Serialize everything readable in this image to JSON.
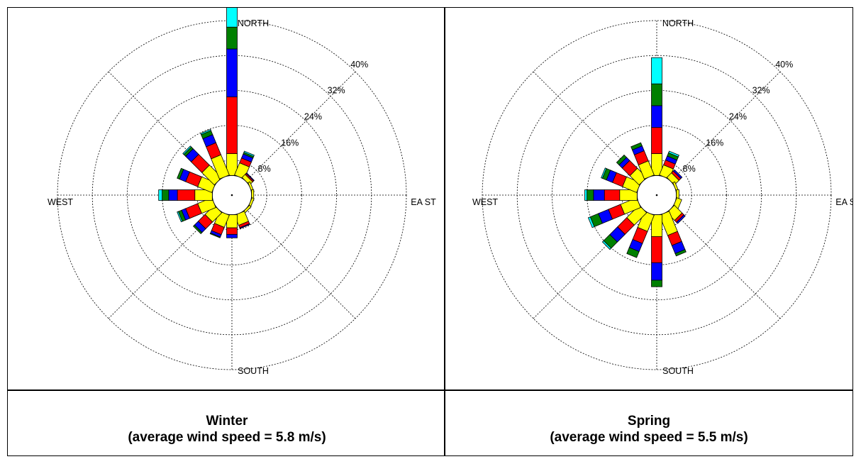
{
  "colors": {
    "bin1": "#ffff00",
    "bin2": "#ff0000",
    "bin3": "#0000ff",
    "bin4": "#008000",
    "bin5": "#00ffff",
    "frame": "#000000"
  },
  "chart_data": [
    {
      "type": "wind_rose",
      "title": "Winter",
      "subtitle": "(average wind speed = 5.8 m/s)",
      "directions": [
        "N",
        "NNE",
        "NE",
        "ENE",
        "E",
        "ESE",
        "SE",
        "SSE",
        "S",
        "SSW",
        "SW",
        "WSW",
        "W",
        "WNW",
        "NW",
        "NNW"
      ],
      "compass_labels": {
        "north": "NORTH",
        "south": "SOUTH",
        "east": "EA ST",
        "west": "WEST"
      },
      "ring_labels": [
        "8%",
        "16%",
        "24%",
        "32%",
        "40%"
      ],
      "rlim": [
        0,
        40
      ],
      "calm_radius": 4.5,
      "grid": true,
      "speed_bin_colors": [
        "#ffff00",
        "#ff0000",
        "#0000ff",
        "#008000",
        "#00ffff"
      ],
      "petals": [
        [
          5,
          13,
          11,
          5,
          6
        ],
        [
          3,
          1.2,
          1,
          0.4,
          0.3
        ],
        [
          1,
          0.3,
          0.2,
          0,
          0
        ],
        [
          0.5,
          0,
          0,
          0,
          0
        ],
        [
          0.5,
          0,
          0,
          0,
          0
        ],
        [
          0.5,
          0,
          0,
          0,
          0
        ],
        [
          0.5,
          0,
          0,
          0,
          0
        ],
        [
          2.5,
          0.6,
          0.2,
          0,
          0
        ],
        [
          3,
          1.5,
          0.8,
          0,
          0
        ],
        [
          3,
          1.8,
          0.6,
          0.2,
          0
        ],
        [
          3,
          2.2,
          1.2,
          0.4,
          0
        ],
        [
          3.5,
          3,
          1,
          0.8,
          0.3
        ],
        [
          4,
          4,
          2,
          1.5,
          0.8
        ],
        [
          3.5,
          3,
          1.5,
          0.6,
          0
        ],
        [
          4,
          3.5,
          1.8,
          0.6,
          0.3
        ],
        [
          5,
          3,
          2,
          1,
          0.3
        ]
      ]
    },
    {
      "type": "wind_rose",
      "title": "Spring",
      "subtitle": "(average wind speed = 5.5 m/s)",
      "directions": [
        "N",
        "NNE",
        "NE",
        "ENE",
        "E",
        "ESE",
        "SE",
        "SSE",
        "S",
        "SSW",
        "SW",
        "WSW",
        "W",
        "WNW",
        "NW",
        "NNW"
      ],
      "compass_labels": {
        "north": "NORTH",
        "south": "SOUTH",
        "east": "EA ST",
        "west": "WEST"
      },
      "ring_labels": [
        "8%",
        "16%",
        "24%",
        "32%",
        "40%"
      ],
      "rlim": [
        0,
        40
      ],
      "calm_radius": 4.5,
      "grid": true,
      "speed_bin_colors": [
        "#ffff00",
        "#ff0000",
        "#0000ff",
        "#008000",
        "#00ffff"
      ],
      "petals": [
        [
          5,
          6,
          5,
          5,
          6
        ],
        [
          2.5,
          1.2,
          1,
          0.8,
          0.4
        ],
        [
          1.5,
          0.6,
          0.4,
          0,
          0
        ],
        [
          0.5,
          0,
          0,
          0,
          0
        ],
        [
          0.6,
          0,
          0,
          0,
          0
        ],
        [
          1.2,
          0,
          0,
          0,
          0
        ],
        [
          2.5,
          0.6,
          0.4,
          0,
          0
        ],
        [
          5,
          2.5,
          2,
          0.6,
          0
        ],
        [
          5,
          6,
          4,
          1.5,
          0
        ],
        [
          4,
          3,
          2,
          1.5,
          0
        ],
        [
          4,
          3,
          2.5,
          2,
          0.4
        ],
        [
          4,
          3,
          2.5,
          2,
          0.5
        ],
        [
          4,
          3.5,
          2.5,
          1.5,
          0.5
        ],
        [
          3.5,
          2.5,
          1.5,
          1,
          0.3
        ],
        [
          3,
          2.5,
          1,
          0.8,
          0
        ],
        [
          3.5,
          2.5,
          1.2,
          0.8,
          0
        ]
      ]
    }
  ]
}
